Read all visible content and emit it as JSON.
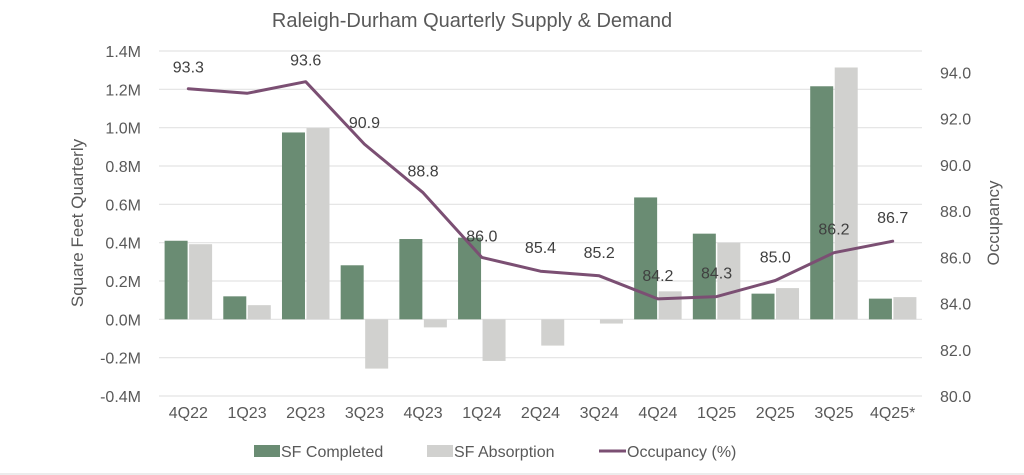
{
  "chart_data": {
    "type": "bar",
    "title": "Raleigh-Durham Quarterly Supply & Demand",
    "xlabel": "",
    "ylabel": "Square Feet Quarterly",
    "y2label": "Occupancy",
    "categories": [
      "4Q22",
      "1Q23",
      "2Q23",
      "3Q23",
      "4Q23",
      "1Q24",
      "2Q24",
      "3Q24",
      "4Q24",
      "1Q25",
      "2Q25",
      "3Q25",
      "4Q25*"
    ],
    "series": [
      {
        "name": "SF Completed",
        "type": "bar",
        "axis": "left",
        "color": "#6a8c73",
        "values": [
          410000,
          120000,
          975000,
          282000,
          419000,
          426000,
          0,
          0,
          636000,
          447000,
          134000,
          1216000,
          108000
        ]
      },
      {
        "name": "SF Absorption",
        "type": "bar",
        "axis": "left",
        "color": "#d1d1cf",
        "values": [
          392000,
          74000,
          998000,
          -257000,
          -42000,
          -217000,
          -137000,
          -22000,
          146000,
          400000,
          163000,
          1314000,
          116000
        ]
      },
      {
        "name": "Occupancy (%)",
        "type": "line",
        "axis": "right",
        "color": "#7b4f73",
        "values": [
          93.3,
          93.1,
          93.6,
          90.9,
          88.8,
          86.0,
          85.4,
          85.2,
          84.2,
          84.3,
          85.0,
          86.2,
          86.7
        ],
        "data_labels": [
          "93.3",
          "",
          "93.6",
          "90.9",
          "88.8",
          "86.0",
          "85.4",
          "85.2",
          "84.2",
          "84.3",
          "85.0",
          "86.2",
          "86.7"
        ]
      }
    ],
    "ylim": [
      -400000,
      1400000
    ],
    "yticks": [
      -400000,
      -200000,
      0,
      200000,
      400000,
      600000,
      800000,
      1000000,
      1200000,
      1400000
    ],
    "ytick_labels": [
      "-0.4M",
      "-0.2M",
      "0.0M",
      "0.2M",
      "0.4M",
      "0.6M",
      "0.8M",
      "1.0M",
      "1.2M",
      "1.4M"
    ],
    "y2lim": [
      80,
      94.93
    ],
    "y2ticks": [
      80,
      82,
      84,
      86,
      88,
      90,
      92,
      94
    ],
    "y2tick_labels": [
      "80.0",
      "82.0",
      "84.0",
      "86.0",
      "88.0",
      "90.0",
      "92.0",
      "94.0"
    ],
    "grid": true,
    "legend": {
      "position": "bottom",
      "entries": [
        "SF Completed",
        "SF Absorption",
        "Occupancy (%)"
      ]
    }
  }
}
